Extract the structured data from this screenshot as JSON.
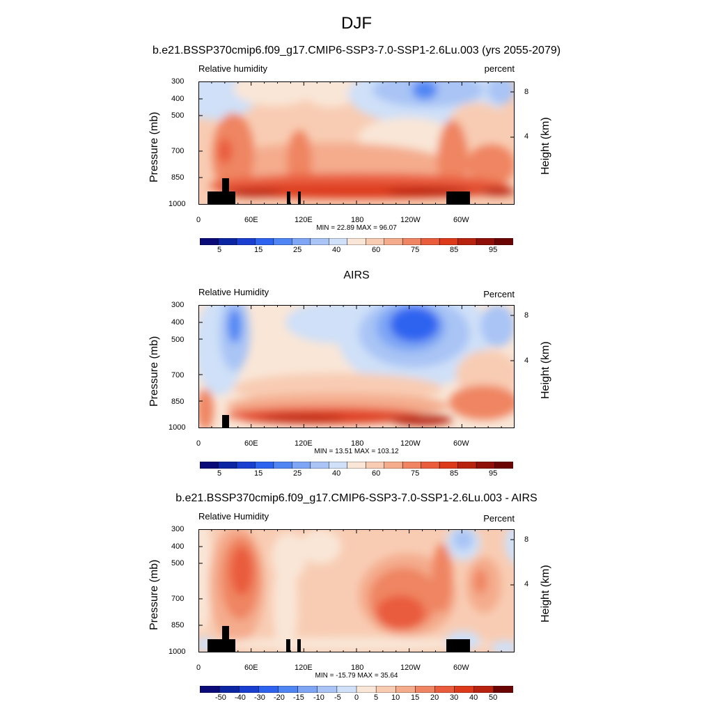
{
  "page": {
    "title": "DJF"
  },
  "chart_data": [
    {
      "type": "heatmap",
      "title": "b.e21.BSSP370cmip6.f09_g17.CMIP6-SSP3-7.0-SSP1-2.6Lu.003 (yrs 2055-2079)",
      "left_label": "Relative humidity",
      "right_label": "percent",
      "ylabel": "Pressure (mb)",
      "y2label": "Height (km)",
      "x_ticks": [
        "0",
        "60E",
        "120E",
        "180",
        "120W",
        "60W"
      ],
      "y_ticks": [
        "300",
        "400",
        "500",
        "700",
        "850",
        "1000"
      ],
      "y2_ticks": [
        "8",
        "4"
      ],
      "ylim": [
        1000,
        300
      ],
      "min_text": "MIN =  22.89  MAX =  96.07",
      "min": 22.89,
      "max": 96.07,
      "colorbar_labels": [
        "5",
        "15",
        "25",
        "40",
        "60",
        "75",
        "85",
        "95"
      ],
      "colorbar_colors": [
        "#0a0a78",
        "#0c26a3",
        "#1a3fd0",
        "#2e63f0",
        "#4f86f4",
        "#7ea6f4",
        "#a9c4f5",
        "#cfe0f8",
        "#f9e6d7",
        "#f8ccb3",
        "#f4ac8d",
        "#ef8562",
        "#e95c3c",
        "#dc3a1b",
        "#b8230f",
        "#8e1008",
        "#6b0504"
      ]
    },
    {
      "type": "heatmap",
      "title": "AIRS",
      "left_label": "Relative Humidity",
      "right_label": "Percent",
      "ylabel": "Pressure (mb)",
      "y2label": "Height (km)",
      "x_ticks": [
        "0",
        "60E",
        "120E",
        "180",
        "120W",
        "60W"
      ],
      "y_ticks": [
        "300",
        "400",
        "500",
        "700",
        "850",
        "1000"
      ],
      "y2_ticks": [
        "8",
        "4"
      ],
      "ylim": [
        1000,
        300
      ],
      "min_text": "MIN =  13.51  MAX = 103.12",
      "min": 13.51,
      "max": 103.12,
      "colorbar_labels": [
        "5",
        "15",
        "25",
        "40",
        "60",
        "75",
        "85",
        "95"
      ],
      "colorbar_colors": [
        "#0a0a78",
        "#0c26a3",
        "#1a3fd0",
        "#2e63f0",
        "#4f86f4",
        "#7ea6f4",
        "#a9c4f5",
        "#cfe0f8",
        "#f9e6d7",
        "#f8ccb3",
        "#f4ac8d",
        "#ef8562",
        "#e95c3c",
        "#dc3a1b",
        "#b8230f",
        "#8e1008",
        "#6b0504"
      ]
    },
    {
      "type": "heatmap",
      "title": "b.e21.BSSP370cmip6.f09_g17.CMIP6-SSP3-7.0-SSP1-2.6Lu.003 - AIRS",
      "left_label": "Relative Humidity",
      "right_label": "Percent",
      "ylabel": "Pressure (mb)",
      "y2label": "Height (km)",
      "x_ticks": [
        "0",
        "60E",
        "120E",
        "180",
        "120W",
        "60W"
      ],
      "y_ticks": [
        "300",
        "400",
        "500",
        "700",
        "850",
        "1000"
      ],
      "y2_ticks": [
        "8",
        "4"
      ],
      "ylim": [
        1000,
        300
      ],
      "min_text": "MIN = -15.79  MAX =  35.64",
      "min": -15.79,
      "max": 35.64,
      "colorbar_labels": [
        "-50",
        "-40",
        "-30",
        "-20",
        "-15",
        "-10",
        "-5",
        "0",
        "5",
        "10",
        "15",
        "20",
        "30",
        "40",
        "50"
      ],
      "colorbar_colors": [
        "#0a0a78",
        "#0c26a3",
        "#1a3fd0",
        "#2e63f0",
        "#4f86f4",
        "#7ea6f4",
        "#a9c4f5",
        "#cfe0f8",
        "#f9e6d7",
        "#f8ccb3",
        "#f4ac8d",
        "#ef8562",
        "#e95c3c",
        "#dc3a1b",
        "#b8230f",
        "#6b0504"
      ]
    }
  ]
}
